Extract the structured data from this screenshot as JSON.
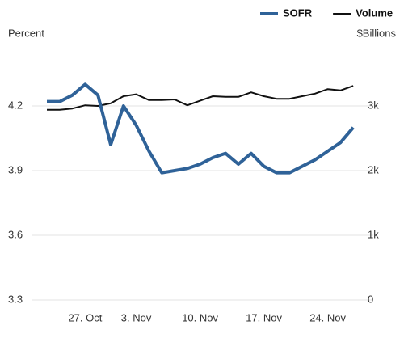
{
  "chart_data": {
    "type": "line",
    "y_label": "Percent",
    "y2_label": "$Billions",
    "categories": [
      null,
      null,
      null,
      "27. Oct",
      null,
      null,
      null,
      "3. Nov",
      null,
      null,
      null,
      null,
      "10. Nov",
      null,
      null,
      null,
      null,
      "17. Nov",
      null,
      null,
      null,
      null,
      "24. Nov",
      null,
      null
    ],
    "ylim": [
      3.3,
      4.5
    ],
    "yticks": [
      3.3,
      3.6,
      3.9,
      4.2
    ],
    "y2lim": [
      0,
      4000
    ],
    "y2ticks": [
      0,
      {
        "value": 1000,
        "label": "1k"
      },
      {
        "value": 2000,
        "label": "2k"
      },
      {
        "value": 3000,
        "label": "3k"
      }
    ],
    "grid": true,
    "legend": "top-right",
    "series": [
      {
        "name": "SOFR",
        "color": "#2f6298",
        "values": [
          4.22,
          4.22,
          4.25,
          4.3,
          4.25,
          4.02,
          4.2,
          4.11,
          3.99,
          3.89,
          3.9,
          3.91,
          3.93,
          3.96,
          3.98,
          3.93,
          3.98,
          3.92,
          3.89,
          3.89,
          3.92,
          3.95,
          3.99,
          4.03,
          4.1
        ]
      },
      {
        "name": "Volume",
        "color": "#111111",
        "axis": "y2",
        "values": [
          2940,
          2940,
          2960,
          3010,
          3000,
          3040,
          3150,
          3180,
          3090,
          3090,
          3100,
          3010,
          3080,
          3150,
          3140,
          3140,
          3210,
          3150,
          3110,
          3110,
          3150,
          3190,
          3260,
          3240,
          3310
        ]
      }
    ]
  }
}
